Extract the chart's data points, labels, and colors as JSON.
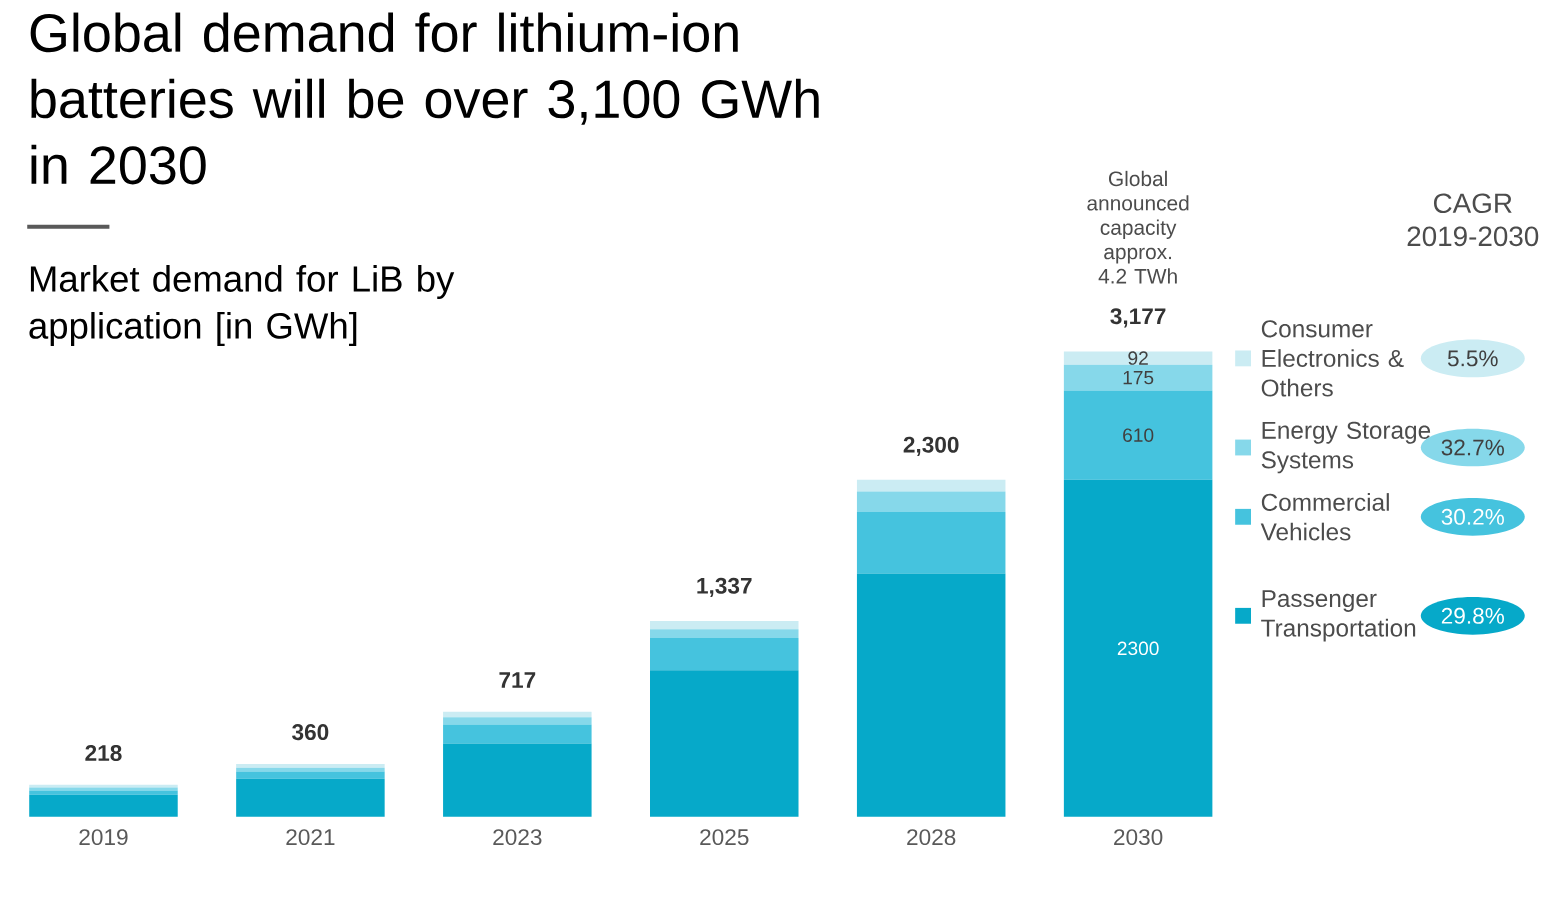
{
  "chart_data": {
    "type": "bar",
    "stacked": true,
    "title": "Global demand for lithium-ion batteries will be over 3,100 GWh in 2030",
    "subtitle": "Market demand for LiB by application [in GWh]",
    "categories": [
      "2019",
      "2021",
      "2023",
      "2025",
      "2028",
      "2030"
    ],
    "series": [
      {
        "name": "Passenger Transportation",
        "color": "#06a9c9",
        "values": [
          150,
          260,
          500,
          1000,
          1660,
          2300
        ],
        "value_labels": [
          null,
          null,
          null,
          null,
          null,
          "2300"
        ]
      },
      {
        "name": "Commercial Vehicles",
        "color": "#45c3de",
        "values": [
          30,
          50,
          130,
          220,
          420,
          610
        ],
        "value_labels": [
          null,
          null,
          null,
          null,
          null,
          "610"
        ]
      },
      {
        "name": "Energy Storage Systems",
        "color": "#86d8ea",
        "values": [
          20,
          25,
          50,
          60,
          140,
          175
        ],
        "value_labels": [
          null,
          null,
          null,
          null,
          null,
          "175"
        ]
      },
      {
        "name": "Consumer Electronics & Others",
        "color": "#cbecf3",
        "values": [
          18,
          25,
          37,
          57,
          80,
          92
        ],
        "value_labels": [
          null,
          null,
          null,
          null,
          null,
          "92"
        ]
      }
    ],
    "totals": [
      "218",
      "360",
      "717",
      "1,337",
      "2,300",
      "3,177"
    ],
    "legend": "right",
    "annotations": [
      "Global announced capacity approx. 4.2 TWh",
      "CAGR 2019-2030",
      "5.5%",
      "32.7%",
      "30.2%",
      "29.8%"
    ]
  }
}
